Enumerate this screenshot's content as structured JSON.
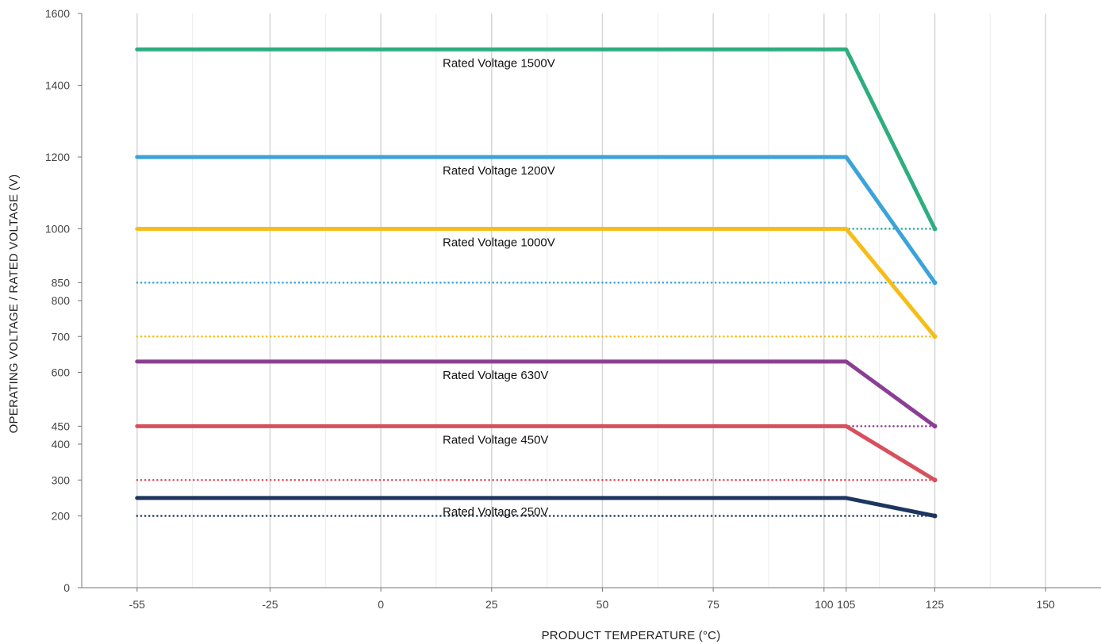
{
  "chart_data": {
    "type": "line",
    "xlabel": "PRODUCT TEMPERATURE (°C)",
    "ylabel": "OPERATING VOLTAGE / RATED VOLTAGE (V)",
    "xlim": [
      -67.5,
      162.5
    ],
    "ylim": [
      0,
      1600
    ],
    "x_ticks": [
      -55,
      -25,
      0,
      25,
      50,
      75,
      100,
      105,
      125,
      150
    ],
    "x_minor_grid": [
      -42.5,
      -12.5,
      12.5,
      37.5,
      62.5,
      87.5,
      112.5,
      137.5
    ],
    "y_ticks": [
      0,
      200,
      300,
      400,
      450,
      600,
      700,
      800,
      850,
      1000,
      1200,
      1400,
      1600
    ],
    "grid": true,
    "series": [
      {
        "name": "Rated Voltage 1500V",
        "color": "#2ead7f",
        "x": [
          -55,
          105,
          125
        ],
        "y": [
          1500,
          1500,
          1000
        ]
      },
      {
        "name": "Rated Voltage 1200V",
        "color": "#3ba3d9",
        "x": [
          -55,
          105,
          125
        ],
        "y": [
          1200,
          1200,
          850
        ]
      },
      {
        "name": "Rated Voltage 1000V",
        "color": "#f6bd17",
        "x": [
          -55,
          105,
          125
        ],
        "y": [
          1000,
          1000,
          700
        ]
      },
      {
        "name": "Rated Voltage 630V",
        "color": "#8b3f93",
        "x": [
          -55,
          105,
          125
        ],
        "y": [
          630,
          630,
          450
        ]
      },
      {
        "name": "Rated Voltage 450V",
        "color": "#d8505c",
        "x": [
          -55,
          105,
          125
        ],
        "y": [
          450,
          450,
          300
        ]
      },
      {
        "name": "Rated Voltage 250V",
        "color": "#1d365f",
        "x": [
          -55,
          105,
          125
        ],
        "y": [
          250,
          250,
          200
        ]
      }
    ],
    "reference_lines": [
      {
        "y": 1000,
        "color": "#23ab9a"
      },
      {
        "y": 850,
        "color": "#3ba3d9"
      },
      {
        "y": 700,
        "color": "#f6bd17"
      },
      {
        "y": 450,
        "color": "#8b3f93"
      },
      {
        "y": 300,
        "color": "#d8505c"
      },
      {
        "y": 200,
        "color": "#1d365f"
      }
    ]
  }
}
